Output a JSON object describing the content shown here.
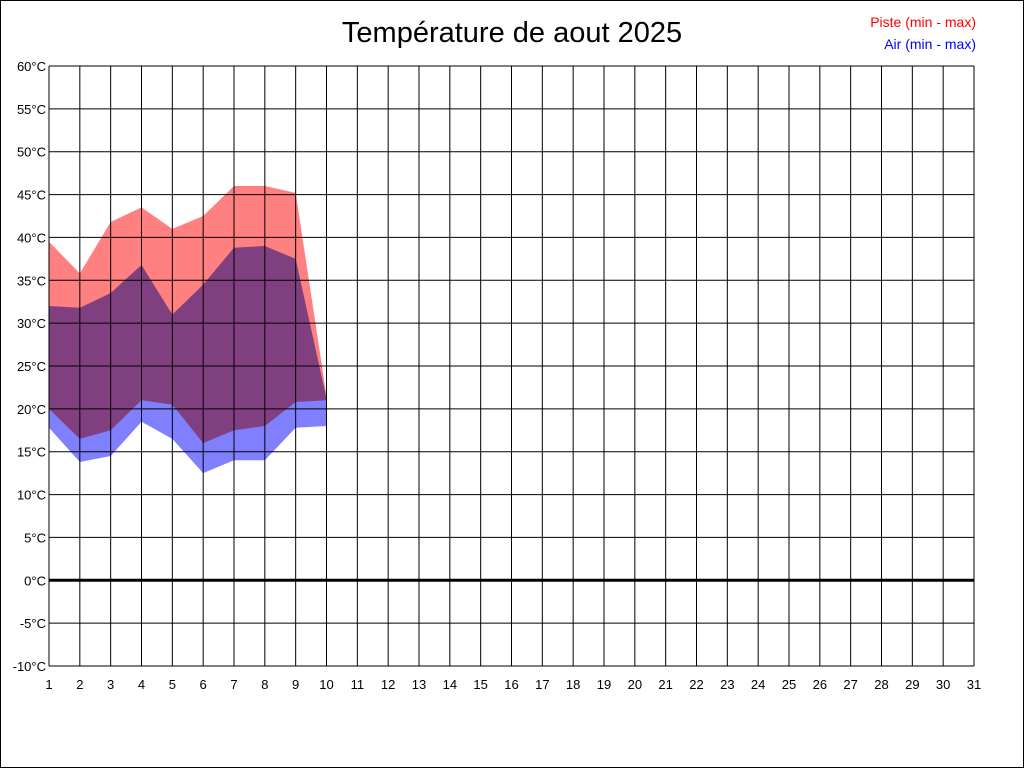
{
  "chart_data": {
    "type": "area",
    "title": "Température de aout 2025",
    "xlabel": "",
    "ylabel": "",
    "x": [
      1,
      2,
      3,
      4,
      5,
      6,
      7,
      8,
      9,
      10
    ],
    "x_ticks": [
      1,
      2,
      3,
      4,
      5,
      6,
      7,
      8,
      9,
      10,
      11,
      12,
      13,
      14,
      15,
      16,
      17,
      18,
      19,
      20,
      21,
      22,
      23,
      24,
      25,
      26,
      27,
      28,
      29,
      30,
      31
    ],
    "xlim": [
      1,
      31
    ],
    "y_ticks": [
      60,
      55,
      50,
      45,
      40,
      35,
      30,
      25,
      20,
      15,
      10,
      5,
      0,
      -5,
      -10
    ],
    "y_unit": "°C",
    "ylim": [
      -10,
      60
    ],
    "grid": true,
    "zero_line": true,
    "legend_position": "top-right",
    "series": [
      {
        "name": "Piste (min - max)",
        "color": "#ff8080",
        "label_color": "#ff0000",
        "min": [
          20.0,
          16.5,
          17.5,
          21.0,
          20.5,
          16.0,
          17.5,
          18.0,
          20.8,
          21.0
        ],
        "max": [
          39.5,
          35.8,
          41.8,
          43.5,
          41.0,
          42.5,
          46.0,
          46.0,
          45.2,
          21.5
        ]
      },
      {
        "name": "Air (min - max)",
        "color": "#8080ff",
        "label_color": "#0000ff",
        "min": [
          17.8,
          13.8,
          14.5,
          18.5,
          16.5,
          12.5,
          14.0,
          14.0,
          17.8,
          18.0
        ],
        "max": [
          32.0,
          31.8,
          33.5,
          36.8,
          31.0,
          34.5,
          38.8,
          39.0,
          37.5,
          21.2
        ]
      }
    ]
  }
}
